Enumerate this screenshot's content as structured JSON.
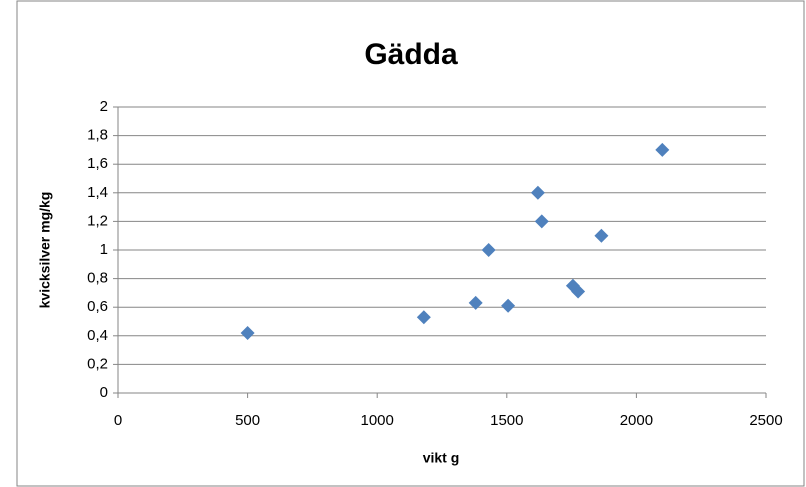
{
  "chart_data": {
    "type": "scatter",
    "title": "Gädda",
    "x_label": "vikt g",
    "y_label": "kvicksilver  mg/kg",
    "series": [
      {
        "color": "#4f81bd",
        "x": [
          500,
          1180,
          1380,
          1505,
          1430,
          1620,
          1635,
          1755,
          1775,
          1865,
          2100
        ],
        "values": [
          0.42,
          0.53,
          0.63,
          0.61,
          1.0,
          1.4,
          1.2,
          0.75,
          0.71,
          1.1,
          1.7
        ]
      }
    ],
    "xlim": [
      0,
      2500
    ],
    "xticks": [
      0,
      500,
      1000,
      1500,
      2000,
      2500
    ],
    "ylim": [
      0,
      2
    ],
    "yticks": [
      0,
      {
        "value": 0.2,
        "label": "0,2"
      },
      {
        "value": 0.4,
        "label": "0,4"
      },
      {
        "value": 0.6,
        "label": "0,6"
      },
      {
        "value": 0.8,
        "label": "0,8"
      },
      1,
      {
        "value": 1.2,
        "label": "1,2"
      },
      {
        "value": 1.4,
        "label": "1,4"
      },
      {
        "value": 1.6,
        "label": "1,6"
      },
      {
        "value": 1.8,
        "label": "1,8"
      },
      2
    ],
    "grid": true
  }
}
